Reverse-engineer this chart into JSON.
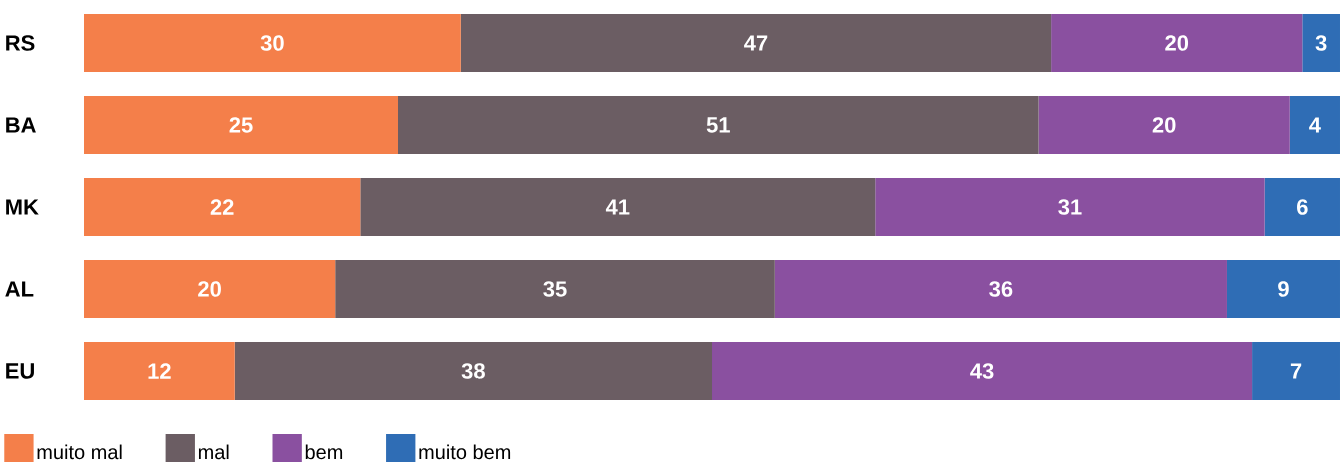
{
  "chart_data": {
    "type": "bar",
    "orientation": "horizontal",
    "stacked": true,
    "data_labels": true,
    "legend": "bottom left",
    "categories": [
      "RS",
      "BA",
      "MK",
      "AL",
      "EU"
    ],
    "series": [
      {
        "name": "muito mal",
        "color": "#f47f4a",
        "values": [
          30,
          25,
          22,
          20,
          12
        ]
      },
      {
        "name": "mal",
        "color": "#6b5d63",
        "values": [
          47,
          51,
          41,
          35,
          38
        ]
      },
      {
        "name": "bem",
        "color": "#8a50a0",
        "values": [
          20,
          20,
          31,
          36,
          43
        ]
      },
      {
        "name": "muito bem",
        "color": "#2f6db5",
        "values": [
          3,
          4,
          6,
          9,
          7
        ]
      }
    ]
  }
}
